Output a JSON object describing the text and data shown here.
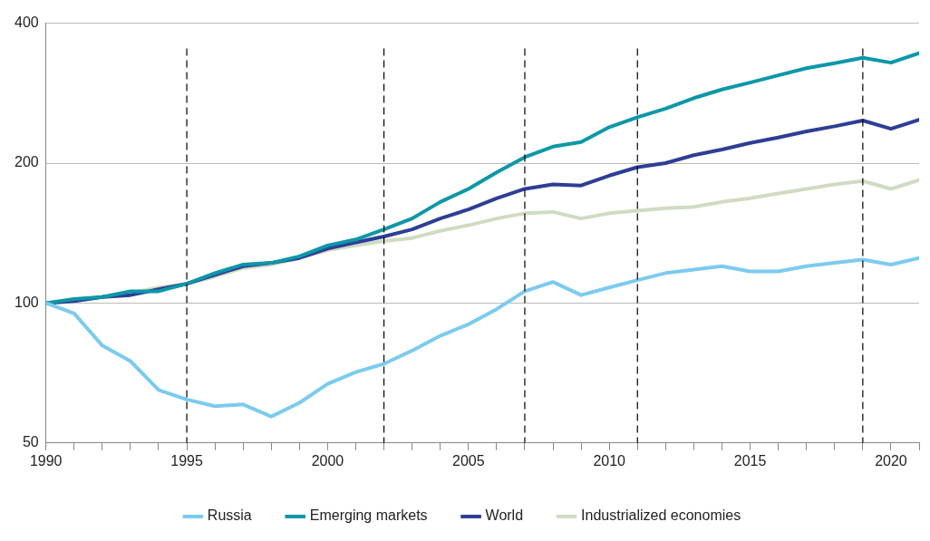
{
  "chart_data": {
    "type": "line",
    "x": [
      1990,
      1991,
      1992,
      1993,
      1994,
      1995,
      1996,
      1997,
      1998,
      1999,
      2000,
      2001,
      2002,
      2003,
      2004,
      2005,
      2006,
      2007,
      2008,
      2009,
      2010,
      2011,
      2012,
      2013,
      2014,
      2015,
      2016,
      2017,
      2018,
      2019,
      2020,
      2021
    ],
    "series": [
      {
        "name": "Russia",
        "color": "#7ccbef",
        "values": [
          100,
          95,
          81,
          75,
          65,
          62,
          60,
          60.5,
          57,
          61,
          67,
          71,
          74,
          79,
          85,
          90,
          97,
          106,
          111,
          104,
          108,
          112,
          116,
          118,
          120,
          117,
          117,
          120,
          122,
          124,
          121,
          125
        ]
      },
      {
        "name": "Emerging markets",
        "color": "#0d97a8",
        "values": [
          100,
          102,
          103,
          106,
          106,
          110,
          116,
          121,
          122,
          126,
          133,
          137,
          144,
          152,
          165,
          176,
          191,
          206,
          217,
          222,
          239,
          251,
          262,
          276,
          288,
          298,
          309,
          320,
          328,
          337,
          329,
          345
        ]
      },
      {
        "name": "World",
        "color": "#2e3e96",
        "values": [
          100,
          101,
          103,
          104,
          107,
          110,
          115,
          120,
          122,
          125,
          131,
          135,
          139,
          144,
          152,
          159,
          168,
          176,
          180,
          179,
          188,
          196,
          200,
          208,
          214,
          221,
          227,
          234,
          240,
          247,
          237,
          248
        ]
      },
      {
        "name": "Industrialized economies",
        "color": "#cfdcc2",
        "values": [
          100,
          101,
          103,
          105,
          108,
          110,
          114,
          119,
          121,
          125,
          130,
          133,
          136,
          138,
          143,
          147,
          152,
          156,
          157,
          152,
          156,
          158,
          160,
          161,
          165,
          168,
          172,
          176,
          180,
          183,
          176,
          184
        ]
      }
    ],
    "xlim": [
      1990,
      2021
    ],
    "xticks": [
      1990,
      {
        "value": 1991,
        "label": null
      },
      {
        "value": 1992,
        "label": null
      },
      {
        "value": 1993,
        "label": null
      },
      {
        "value": 1994,
        "label": null
      },
      1995,
      {
        "value": 1996,
        "label": null
      },
      {
        "value": 1997,
        "label": null
      },
      {
        "value": 1998,
        "label": null
      },
      {
        "value": 1999,
        "label": null
      },
      2000,
      {
        "value": 2001,
        "label": null
      },
      {
        "value": 2002,
        "label": null
      },
      {
        "value": 2003,
        "label": null
      },
      {
        "value": 2004,
        "label": null
      },
      2005,
      {
        "value": 2006,
        "label": null
      },
      {
        "value": 2007,
        "label": null
      },
      {
        "value": 2008,
        "label": null
      },
      {
        "value": 2009,
        "label": null
      },
      2010,
      {
        "value": 2011,
        "label": null
      },
      {
        "value": 2012,
        "label": null
      },
      {
        "value": 2013,
        "label": null
      },
      {
        "value": 2014,
        "label": null
      },
      2015,
      {
        "value": 2016,
        "label": null
      },
      {
        "value": 2017,
        "label": null
      },
      {
        "value": 2018,
        "label": null
      },
      {
        "value": 2019,
        "label": null
      },
      2020,
      {
        "value": 2021,
        "label": null
      }
    ],
    "ylim": [
      50,
      400
    ],
    "yticks": [
      50,
      100,
      200,
      400
    ],
    "log": "y",
    "grid": "y",
    "legend": "bottom",
    "marker": "none",
    "line_style": "solid",
    "ref_lines": [
      {
        "axis": "x",
        "value": 1995,
        "color": "#000000",
        "line_style": "dashed"
      },
      {
        "axis": "x",
        "value": 2002,
        "color": "#000000",
        "line_style": "dashed"
      },
      {
        "axis": "x",
        "value": 2007,
        "color": "#000000",
        "line_style": "dashed"
      },
      {
        "axis": "x",
        "value": 2011,
        "color": "#000000",
        "line_style": "dashed"
      },
      {
        "axis": "x",
        "value": 2019,
        "color": "#000000",
        "line_style": "dashed"
      }
    ]
  }
}
